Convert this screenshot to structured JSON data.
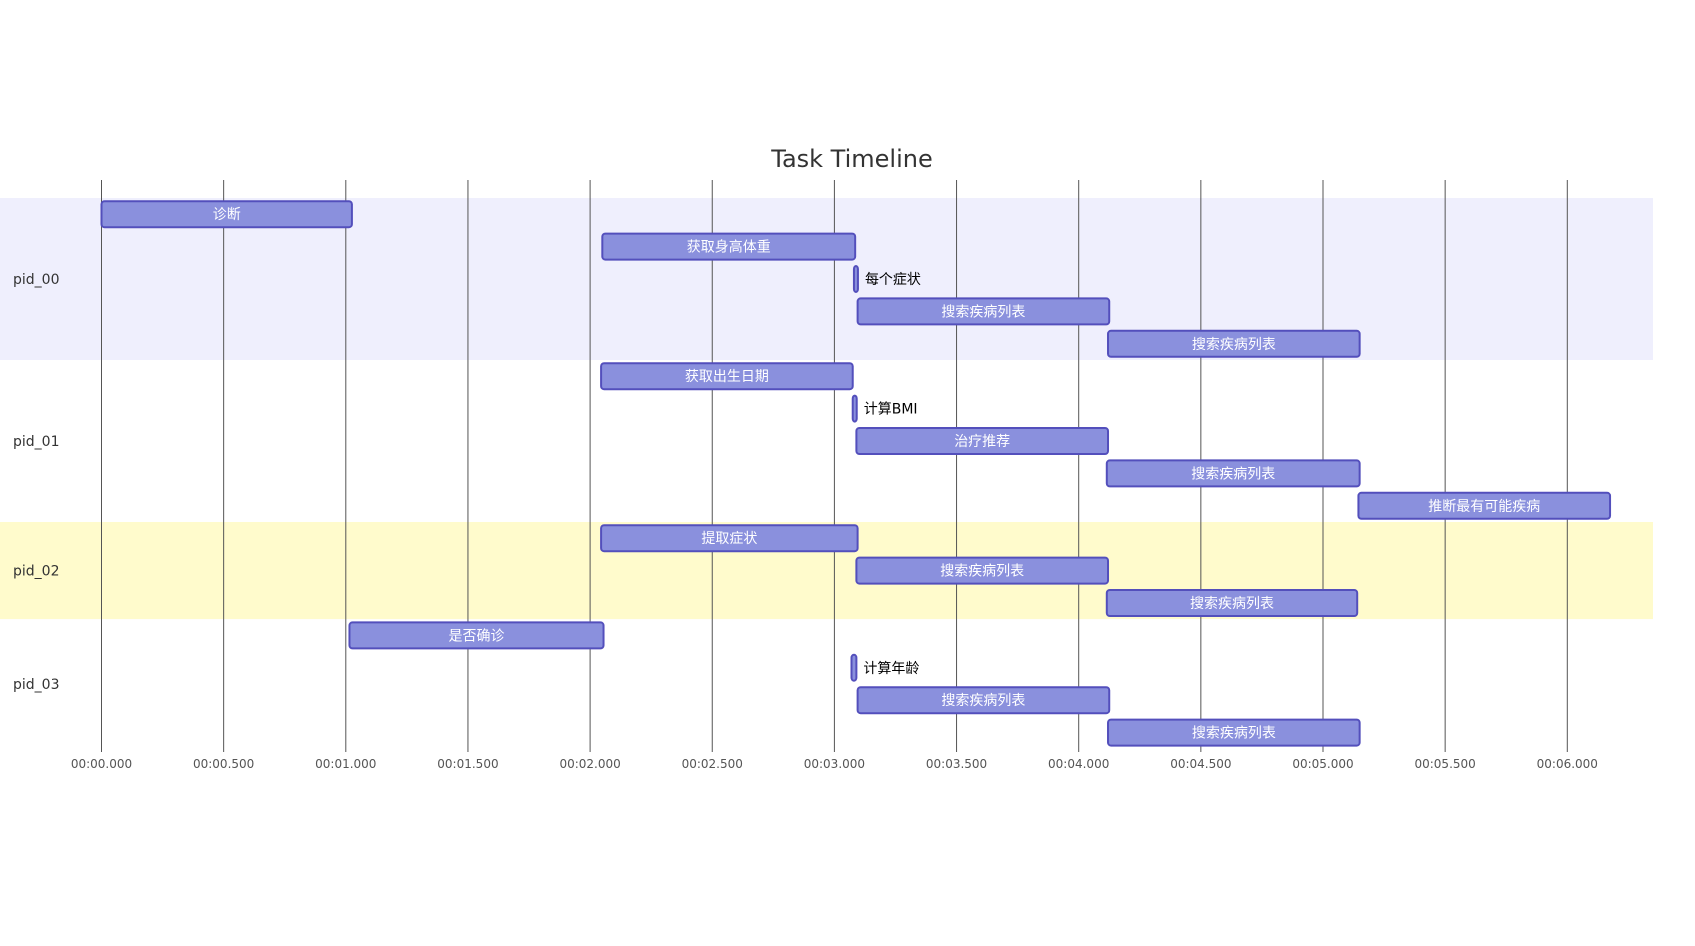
{
  "chart_data": {
    "type": "gantt",
    "title": "Task Timeline",
    "x_ticks": [
      "00:00.000",
      "00:00.500",
      "00:01.000",
      "00:01.500",
      "00:02.000",
      "00:02.500",
      "00:03.000",
      "00:03.500",
      "00:04.000",
      "00:04.500",
      "00:05.000",
      "00:05.500",
      "00:06.000"
    ],
    "xlim": [
      0,
      6.37
    ],
    "colors": {
      "bar_fill": "#8a90dd",
      "bar_stroke": "#534fbc",
      "section_even": "#efeffd",
      "section_odd": "#ffffff",
      "section_alt": "#fffbcc",
      "grid": "#555555"
    },
    "sections": [
      {
        "name": "pid_00",
        "band": "section_even",
        "tasks": [
          {
            "label": "诊断",
            "start": 0.0,
            "end": 1.025
          },
          {
            "label": "获取身高体重",
            "start": 2.05,
            "end": 3.085
          },
          {
            "label": "每个症状",
            "start": 3.08,
            "end": 3.095
          },
          {
            "label": "搜索疾病列表",
            "start": 3.095,
            "end": 4.125
          },
          {
            "label": "搜索疾病列表",
            "start": 4.12,
            "end": 5.15
          }
        ]
      },
      {
        "name": "pid_01",
        "band": "section_odd",
        "tasks": [
          {
            "label": "获取出生日期",
            "start": 2.045,
            "end": 3.075
          },
          {
            "label": "计算BMI",
            "start": 3.075,
            "end": 3.09
          },
          {
            "label": "治疗推荐",
            "start": 3.09,
            "end": 4.12
          },
          {
            "label": "搜索疾病列表",
            "start": 4.115,
            "end": 5.15
          },
          {
            "label": "推断最有可能疾病",
            "start": 5.145,
            "end": 6.175
          }
        ]
      },
      {
        "name": "pid_02",
        "band": "section_alt",
        "tasks": [
          {
            "label": "提取症状",
            "start": 2.045,
            "end": 3.095
          },
          {
            "label": "搜索疾病列表",
            "start": 3.09,
            "end": 4.12
          },
          {
            "label": "搜索疾病列表",
            "start": 4.115,
            "end": 5.14
          }
        ]
      },
      {
        "name": "pid_03",
        "band": "section_odd",
        "tasks": [
          {
            "label": "是否确诊",
            "start": 1.015,
            "end": 2.055
          },
          {
            "label": "计算年龄",
            "start": 3.07,
            "end": 3.09
          },
          {
            "label": "搜索疾病列表",
            "start": 3.095,
            "end": 4.125
          },
          {
            "label": "搜索疾病列表",
            "start": 4.12,
            "end": 5.15
          }
        ]
      }
    ]
  }
}
